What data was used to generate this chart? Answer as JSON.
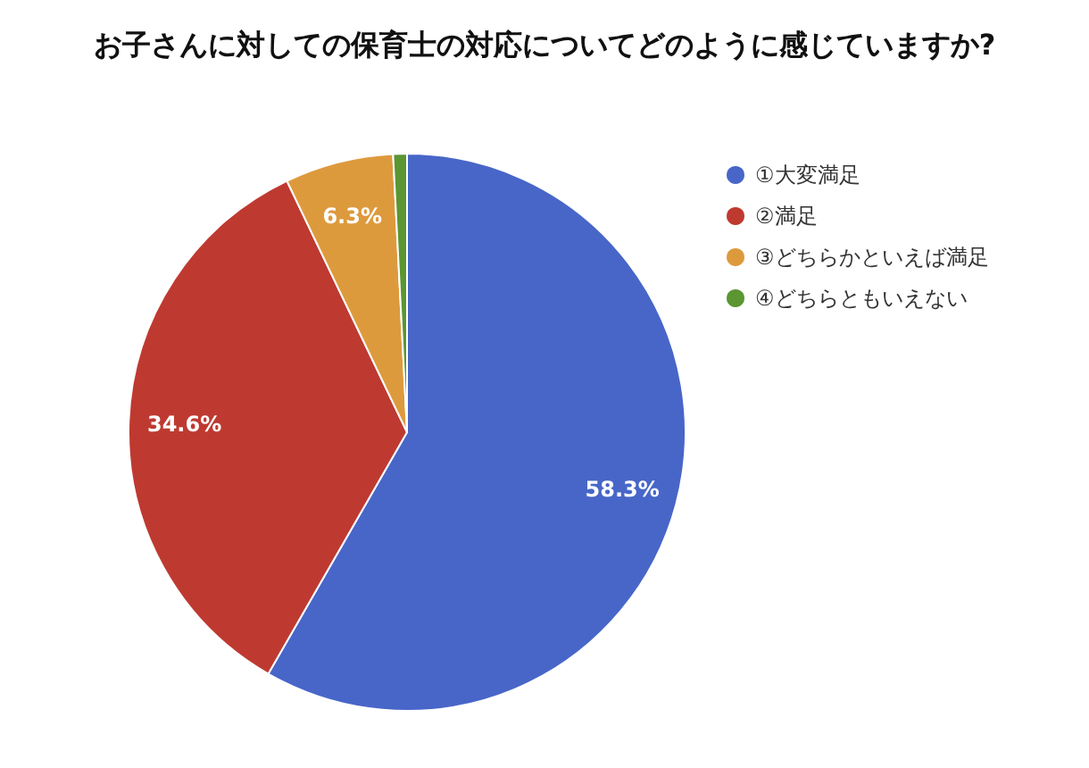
{
  "chart_data": {
    "type": "pie",
    "title": "お子さんに対しての保育士の対応についてどのように感じていますか?",
    "categories": [
      "①大変満足",
      "②満足",
      "③どちらかといえば満足",
      "④どちらともいえない"
    ],
    "values": [
      58.3,
      34.6,
      6.3,
      0.8
    ],
    "colors": [
      "#4866c8",
      "#be3a31",
      "#dd9a3d",
      "#5b9632"
    ],
    "value_labels": [
      "58.3%",
      "34.6%",
      "6.3%",
      null
    ],
    "legend": "top right"
  }
}
